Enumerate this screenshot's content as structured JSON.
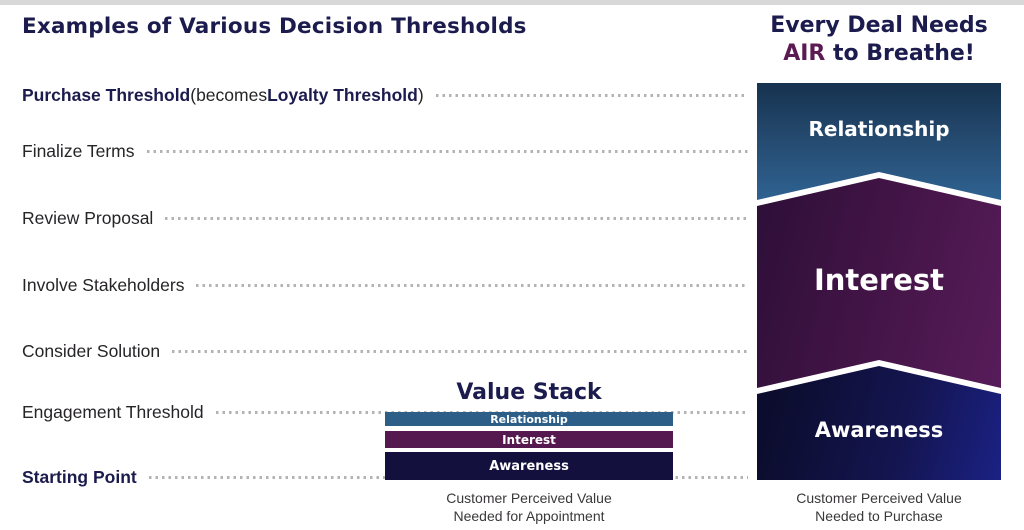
{
  "header": {
    "title": "Examples of Various Decision Thresholds"
  },
  "colors": {
    "navy_text": "#1b1b4e",
    "air_accent": "#5c1a52",
    "dot_gray": "#b5b2b5",
    "relationship": "#2d5e87",
    "interest": "#55194f",
    "awareness": "#14103e"
  },
  "thresholds": {
    "purchase": {
      "bold1": "Purchase Threshold",
      "mid": " (becomes ",
      "bold2": "Loyalty Threshold",
      "end": ")"
    },
    "items": [
      "Finalize Terms",
      "Review Proposal",
      "Involve Stakeholders",
      "Consider Solution",
      "Engagement Threshold"
    ],
    "start": "Starting Point"
  },
  "value_stack": {
    "title": "Value Stack",
    "bars": [
      {
        "label": "Relationship",
        "color": "#2d5e87"
      },
      {
        "label": "Interest",
        "color": "#55194f"
      },
      {
        "label": "Awareness",
        "color": "#14103e"
      }
    ],
    "caption_line1": "Customer Perceived Value",
    "caption_line2": "Needed for Appointment"
  },
  "air_chart": {
    "heading_line1": "Every Deal Needs",
    "heading_accent": "AIR",
    "heading_rest": " to Breathe!",
    "segments": [
      {
        "label": "Relationship",
        "color_top": "#16324f",
        "color_bottom": "#2f6291"
      },
      {
        "label": "Interest",
        "color_dark": "#2d0f38",
        "color_light": "#571c5a"
      },
      {
        "label": "Awareness",
        "color_dark": "#0c0d2e",
        "color_light": "#1b2184"
      }
    ],
    "caption_line1": "Customer Perceived Value",
    "caption_line2": "Needed to Purchase"
  }
}
